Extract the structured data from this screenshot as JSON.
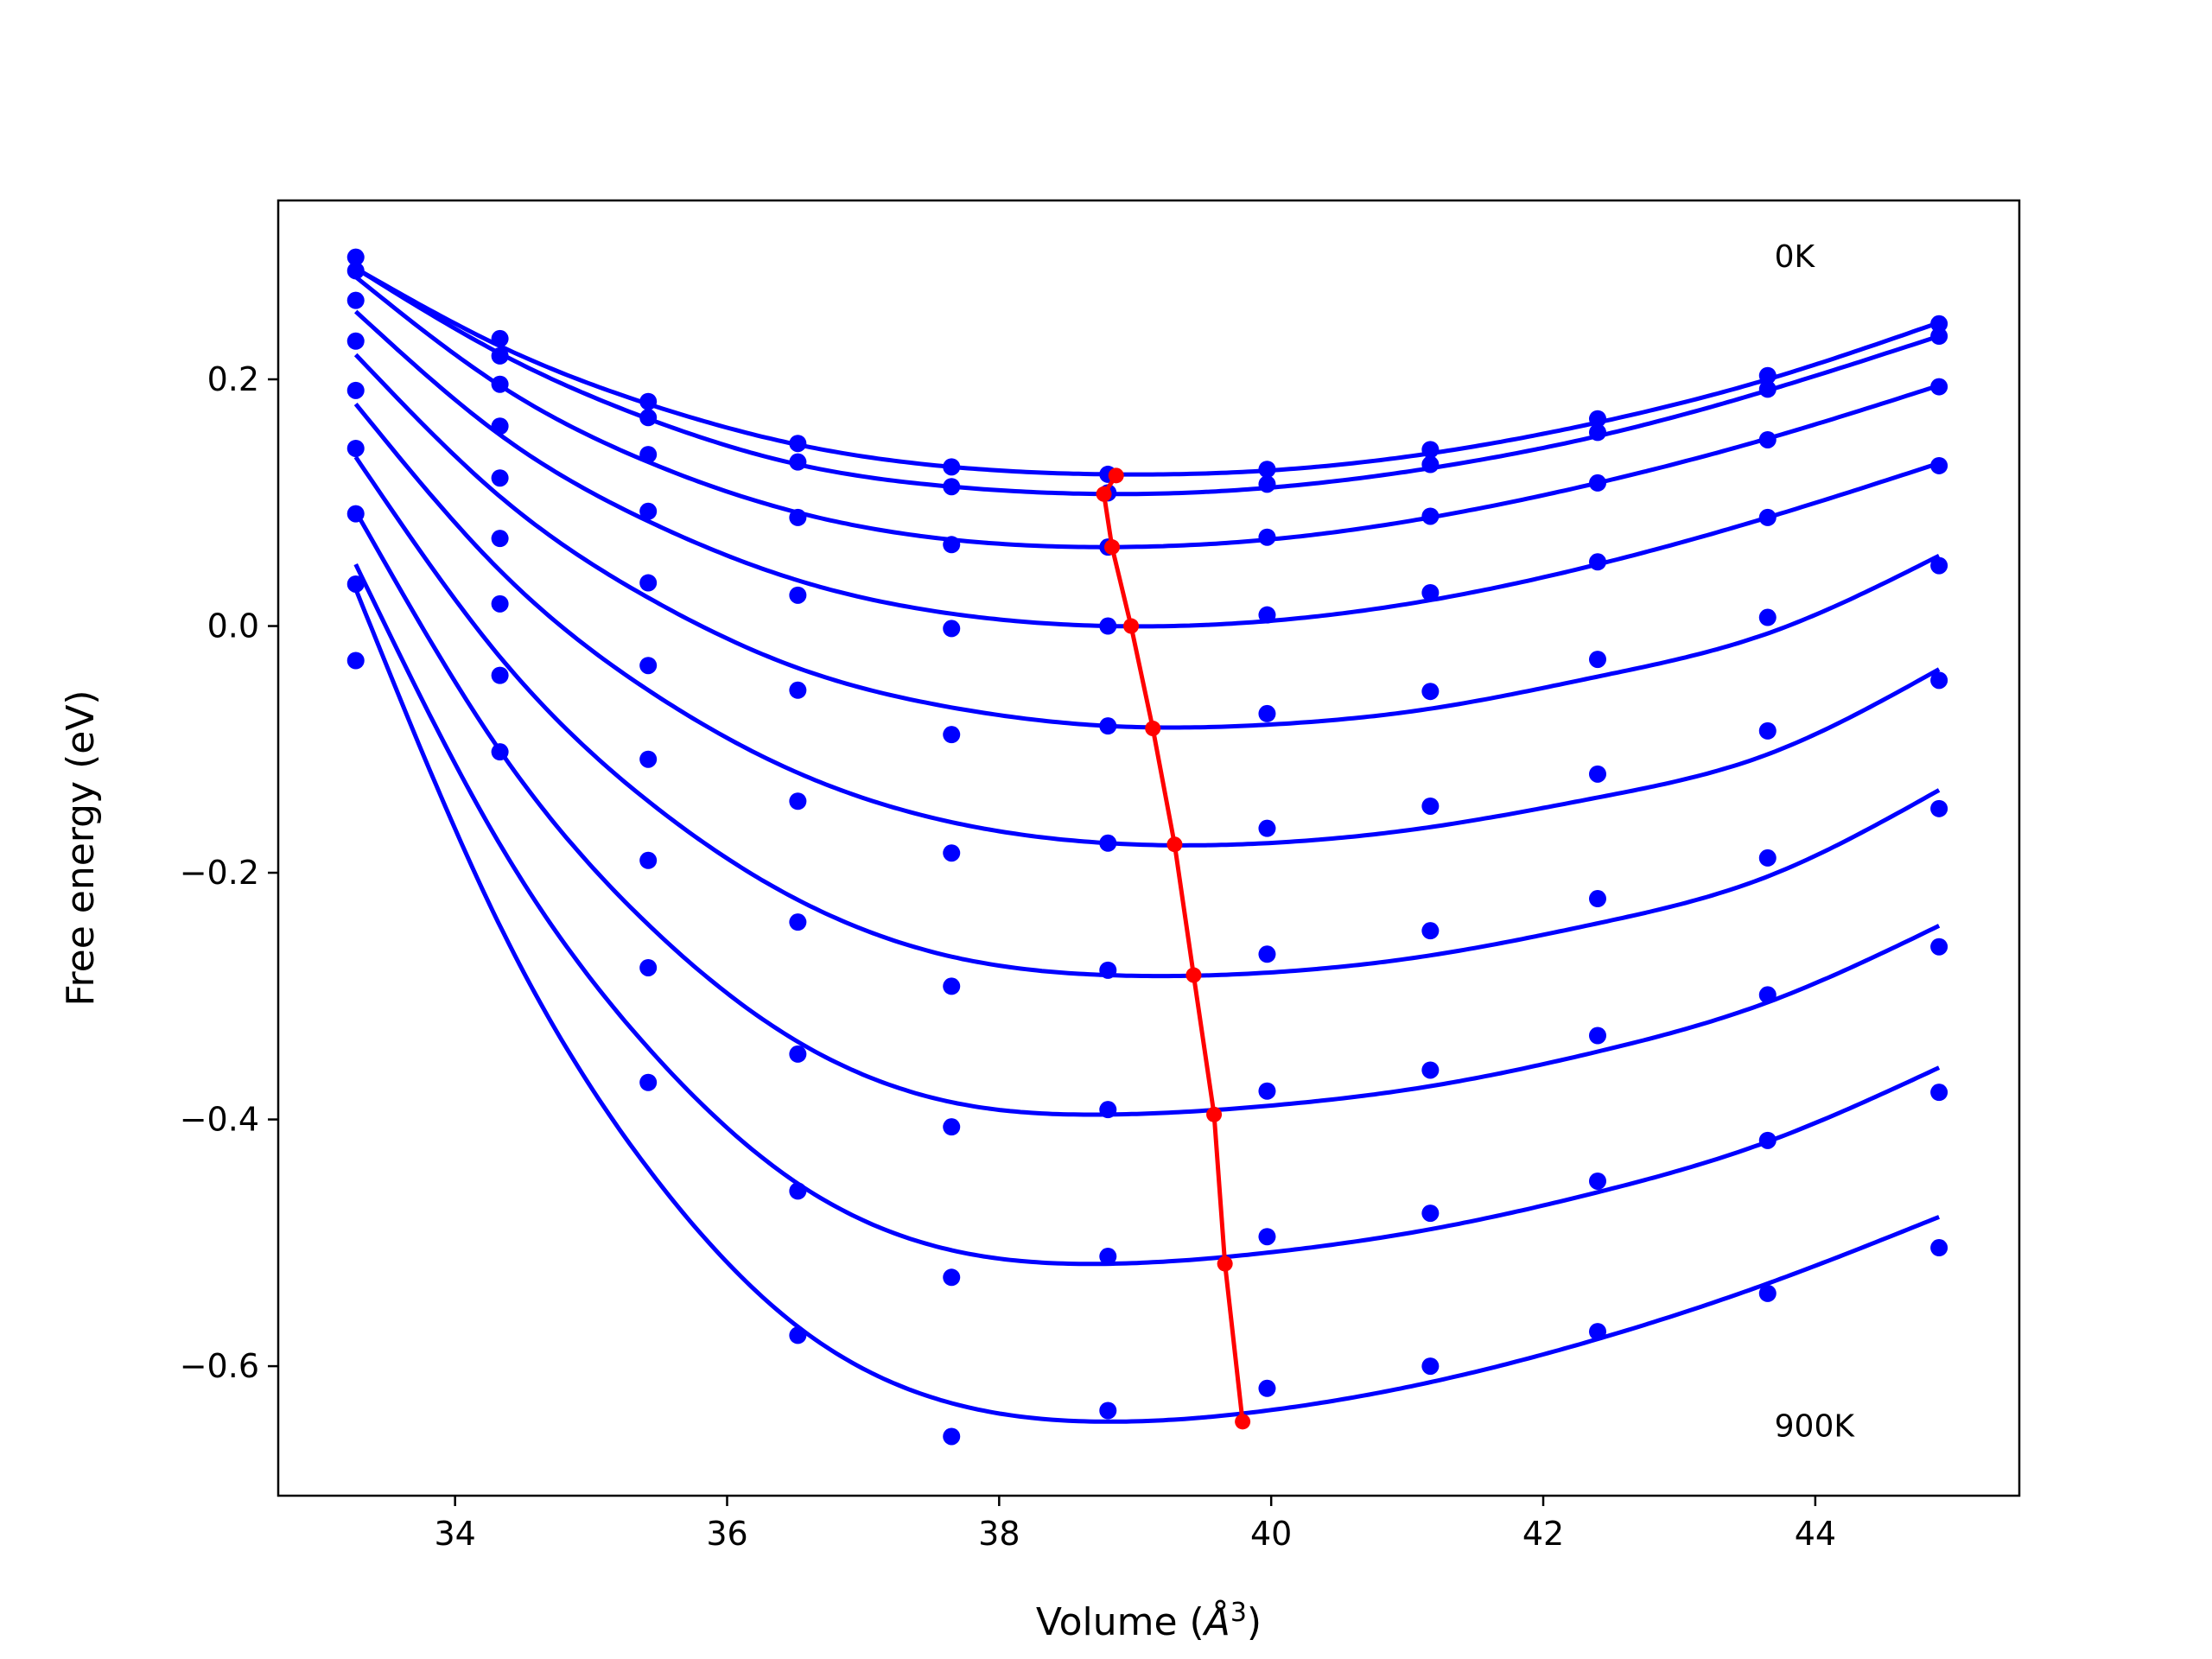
{
  "chart_data": {
    "type": "scatter",
    "title": "",
    "xlabel_main": "Volume (",
    "xlabel_sym": "Å",
    "xlabel_sup": "3",
    "xlabel_end": ")",
    "ylabel": "Free energy (eV)",
    "xlim": [
      32.7,
      45.5
    ],
    "ylim": [
      -0.705,
      0.345
    ],
    "xticks": [
      34,
      36,
      38,
      40,
      42,
      44
    ],
    "xtick_labels": [
      "34",
      "36",
      "38",
      "40",
      "42",
      "44"
    ],
    "yticks": [
      0.2,
      0.0,
      -0.2,
      -0.4,
      -0.6
    ],
    "ytick_labels": [
      "0.2",
      "0.0",
      "−0.2",
      "−0.4",
      "−0.6"
    ],
    "annotations": [
      {
        "text": "0K",
        "x": 43.7,
        "y": 0.3
      },
      {
        "text": "900K",
        "x": 43.7,
        "y": -0.648
      }
    ],
    "x": [
      33.27,
      34.33,
      35.42,
      36.52,
      37.65,
      38.8,
      39.97,
      41.17,
      42.4,
      43.65,
      44.91
    ],
    "series": [
      {
        "values": [
          0.299,
          0.233,
          0.182,
          0.148,
          0.129,
          0.123,
          0.127,
          0.143,
          0.168,
          0.203,
          0.245
        ],
        "fit": [
          0.29,
          0.227,
          0.18,
          0.147,
          0.129,
          0.123,
          0.126,
          0.14,
          0.165,
          0.2,
          0.246
        ]
      },
      {
        "values": [
          0.288,
          0.219,
          0.169,
          0.133,
          0.113,
          0.108,
          0.115,
          0.131,
          0.157,
          0.192,
          0.235
        ],
        "fit": [
          0.29,
          0.221,
          0.168,
          0.131,
          0.113,
          0.107,
          0.112,
          0.128,
          0.154,
          0.191,
          0.235
        ]
      },
      {
        "values": [
          0.264,
          0.196,
          0.139,
          0.088,
          0.066,
          0.064,
          0.072,
          0.089,
          0.116,
          0.151,
          0.194
        ],
        "fit": [
          0.283,
          0.195,
          0.133,
          0.092,
          0.07,
          0.064,
          0.07,
          0.088,
          0.116,
          0.152,
          0.195
        ]
      },
      {
        "values": [
          0.231,
          0.162,
          0.093,
          0.025,
          -0.002,
          0.0,
          0.009,
          0.027,
          0.052,
          0.088,
          0.13
        ],
        "fit": [
          0.255,
          0.155,
          0.085,
          0.037,
          0.01,
          0.0,
          0.004,
          0.021,
          0.05,
          0.088,
          0.132
        ]
      },
      {
        "values": [
          0.191,
          0.12,
          0.035,
          -0.052,
          -0.088,
          -0.081,
          -0.071,
          -0.053,
          -0.027,
          0.007,
          0.049
        ],
        "fit": [
          0.22,
          0.105,
          0.023,
          -0.034,
          -0.066,
          -0.081,
          -0.08,
          -0.067,
          -0.041,
          -0.006,
          0.057
        ]
      },
      {
        "values": [
          0.144,
          0.071,
          -0.032,
          -0.142,
          -0.184,
          -0.176,
          -0.164,
          -0.146,
          -0.12,
          -0.085,
          -0.044
        ],
        "fit": [
          0.18,
          0.045,
          -0.052,
          -0.119,
          -0.159,
          -0.176,
          -0.176,
          -0.163,
          -0.139,
          -0.104,
          -0.035
        ]
      },
      {
        "values": [
          0.091,
          0.018,
          -0.108,
          -0.24,
          -0.292,
          -0.279,
          -0.266,
          -0.247,
          -0.221,
          -0.188,
          -0.148
        ],
        "fit": [
          0.137,
          -0.025,
          -0.142,
          -0.222,
          -0.268,
          -0.283,
          -0.281,
          -0.267,
          -0.241,
          -0.203,
          -0.133
        ]
      },
      {
        "values": [
          0.034,
          -0.04,
          -0.19,
          -0.347,
          -0.406,
          -0.392,
          -0.377,
          -0.36,
          -0.332,
          -0.299,
          -0.26
        ],
        "fit": [
          0.093,
          -0.101,
          -0.242,
          -0.337,
          -0.386,
          -0.396,
          -0.389,
          -0.373,
          -0.345,
          -0.305,
          -0.243
        ]
      },
      {
        "values": [
          -0.028,
          -0.102,
          -0.277,
          -0.458,
          -0.528,
          -0.511,
          -0.495,
          -0.476,
          -0.45,
          -0.417,
          -0.378
        ],
        "fit": [
          0.05,
          -0.177,
          -0.342,
          -0.452,
          -0.506,
          -0.517,
          -0.508,
          -0.489,
          -0.459,
          -0.418,
          -0.358
        ]
      },
      {
        "values": [
          null,
          null,
          -0.37,
          -0.575,
          -0.657,
          -0.636,
          -0.618,
          -0.6,
          -0.572,
          -0.541,
          -0.504
        ],
        "fit": [
          0.03,
          -0.243,
          -0.44,
          -0.568,
          -0.63,
          -0.645,
          -0.636,
          -0.613,
          -0.578,
          -0.533,
          -0.479
        ]
      }
    ],
    "minima_line": {
      "x": [
        38.86,
        38.77,
        38.83,
        38.97,
        39.13,
        39.29,
        39.43,
        39.58,
        39.66,
        39.79
      ],
      "y": [
        0.122,
        0.107,
        0.064,
        0.0,
        -0.083,
        -0.177,
        -0.283,
        -0.396,
        -0.517,
        -0.645
      ]
    },
    "colors": {
      "data": "#0000ff",
      "fit": "#0000ff",
      "minima": "#ff0000",
      "axes": "#000000"
    },
    "grid": false
  }
}
